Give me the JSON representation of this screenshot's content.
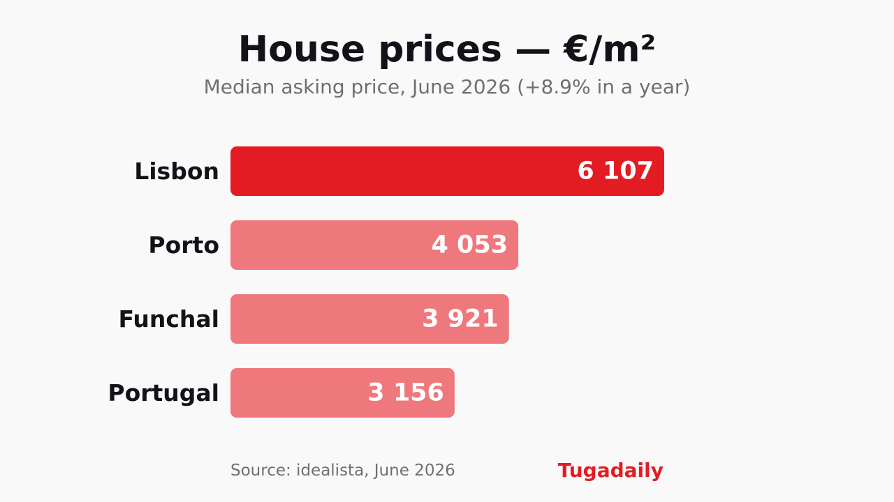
{
  "title": "House prices — €/m²",
  "subtitle": "Median asking price, June 2026 (+8.9% in a year)",
  "source": "Source: idealista, June 2026",
  "brand": "Tugadaily",
  "colors": {
    "highlight": "#e31c24",
    "muted": "#ee787c",
    "brand": "#e31c24",
    "label": "#121318",
    "value_text": "#ffffff"
  },
  "chart_data": {
    "type": "bar",
    "orientation": "horizontal",
    "categories": [
      "Lisbon",
      "Porto",
      "Funchal",
      "Portugal"
    ],
    "values": [
      6107,
      4053,
      3921,
      3156
    ],
    "value_labels": [
      "6 107",
      "4 053",
      "3 921",
      "3 156"
    ],
    "highlighted": [
      "Lisbon"
    ],
    "title": "House prices — €/m²",
    "subtitle": "Median asking price, June 2026 (+8.9% in a year)",
    "xlim": [
      0,
      6107
    ],
    "grid": false,
    "legend": "none"
  }
}
